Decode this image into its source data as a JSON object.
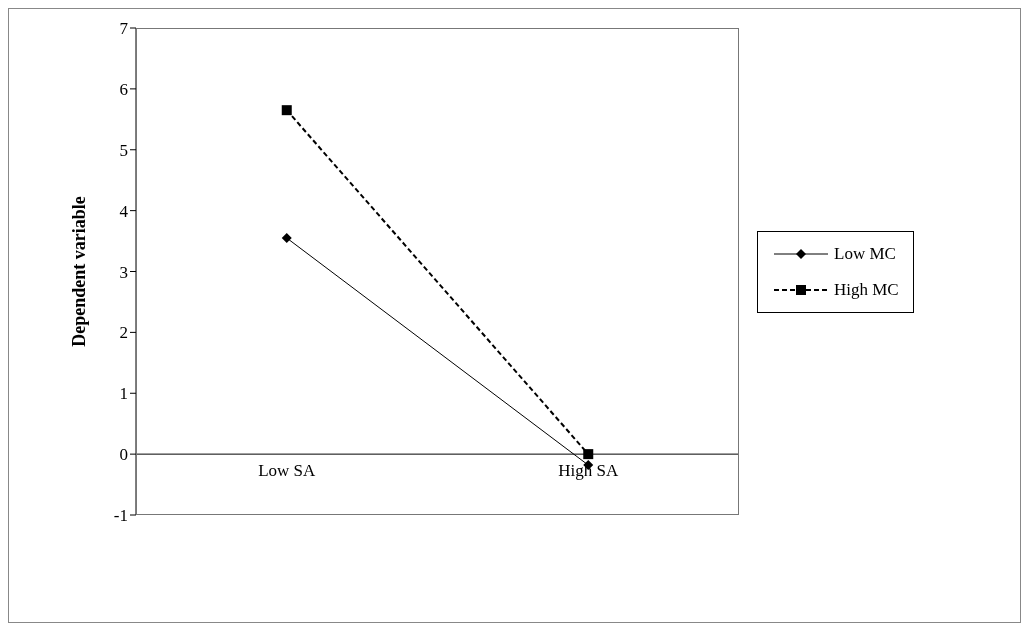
{
  "chart_data": {
    "type": "line",
    "ylabel": "Dependent variable",
    "categories": [
      "Low SA",
      "High SA"
    ],
    "series": [
      {
        "name": "Low MC",
        "color": "#000000",
        "marker": "diamond",
        "line_style": "solid",
        "values": [
          3.55,
          -0.18
        ]
      },
      {
        "name": "High MC",
        "color": "#000000",
        "marker": "square",
        "line_style": "dashed",
        "values": [
          5.65,
          0.0
        ]
      }
    ],
    "ylim": [
      -1,
      7
    ],
    "yticks": [
      -1,
      0,
      1,
      2,
      3,
      4,
      5,
      6,
      7
    ],
    "grid": false,
    "legend": "right"
  }
}
